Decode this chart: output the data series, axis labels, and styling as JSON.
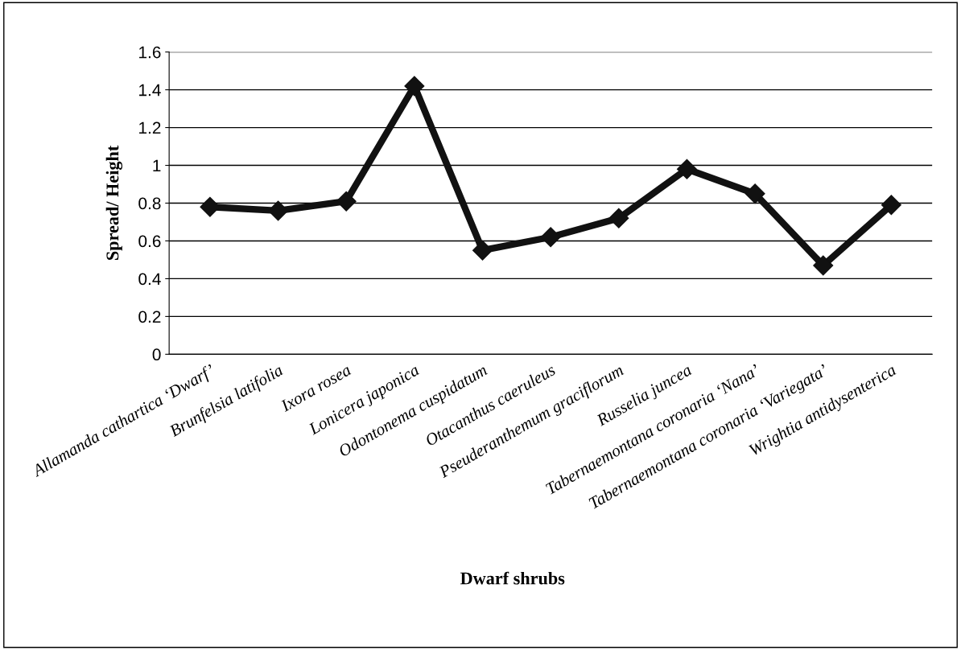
{
  "chart_data": {
    "type": "line",
    "xlabel": "Dwarf shrubs",
    "ylabel": "Spread/ Height",
    "categories": [
      "Allamanda cathartica ‘Dwarf’",
      "Brunfelsia latifolia",
      "Ixora rosea",
      "Lonicera japonica",
      "Odontonema cuspidatum",
      "Otacanthus caeruleus",
      "Pseuderanthemum graciflorum",
      "Russelia juncea",
      "Tabernaemontana coronaria ‘Nana’",
      "Tabernaemontana coronaria ‘Variegata’",
      "Wrightia antidysenterica"
    ],
    "series": [
      {
        "color": "#111111",
        "values": [
          0.78,
          0.76,
          0.81,
          1.42,
          0.55,
          0.62,
          0.72,
          0.98,
          0.85,
          0.47,
          0.79
        ]
      }
    ],
    "ylim": [
      0,
      1.6
    ],
    "yticks": [
      0,
      {
        "value": 0.2,
        "label": "0.2"
      },
      {
        "value": 0.4,
        "label": "0.4"
      },
      {
        "value": 0.6,
        "label": "0.6"
      },
      {
        "value": 0.8,
        "label": "0.8"
      },
      1,
      {
        "value": 1.2,
        "label": "1.2"
      },
      {
        "value": 1.4,
        "label": "1.4"
      },
      {
        "value": 1.6,
        "label": "1.6"
      }
    ],
    "grid": "y",
    "marker": "diamond",
    "line_style": "solid"
  }
}
